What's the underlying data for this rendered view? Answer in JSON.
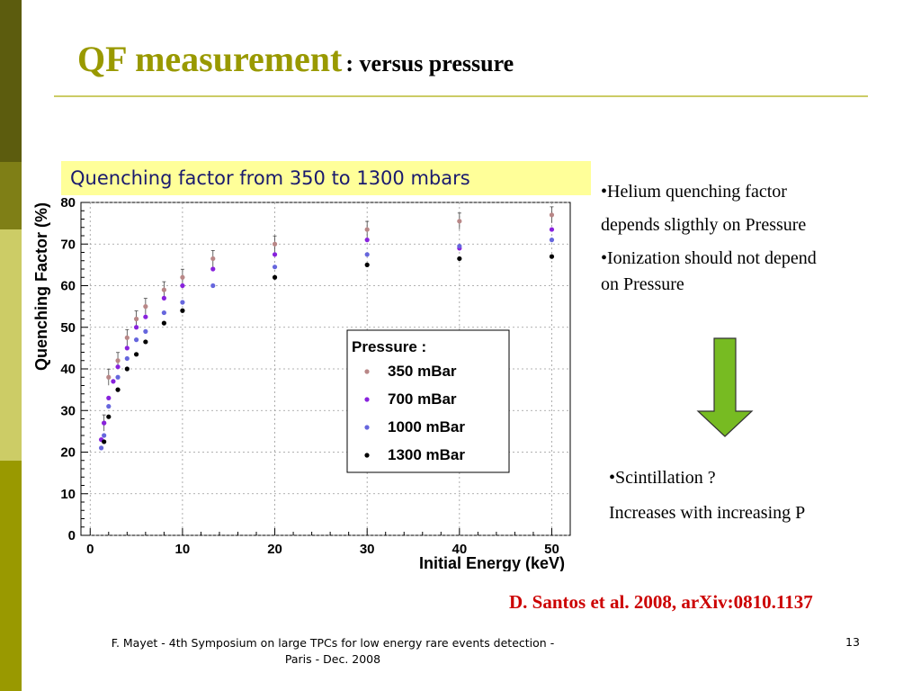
{
  "slide": {
    "title_main": "QF measurement",
    "title_sub": ": versus pressure",
    "banner": "Quenching factor from 350 to 1300 mbars",
    "bullets_top": [
      "•Helium quenching factor",
      "depends sligthly on Pressure",
      "•Ionization should not depend",
      "on Pressure"
    ],
    "bullets_bottom": [
      "•Scintillation ?",
      "Increases with increasing P"
    ],
    "reference": "D. Santos et al. 2008, arXiv:0810.1137",
    "footer_line1": "F. Mayet  - 4th Symposium on large TPCs  for low energy rare events detection -",
    "footer_line2": "Paris - Dec. 2008",
    "page_number": "13",
    "colors": {
      "title": "#999900",
      "banner_bg": "#ffff99",
      "arrow": "#77bb22",
      "reference": "#cc0000"
    }
  },
  "chart_data": {
    "type": "scatter",
    "xlabel": "Initial Energy (keV)",
    "ylabel": "Quenching Factor (%)",
    "xlim": [
      -1,
      52
    ],
    "ylim": [
      0,
      80
    ],
    "xticks": [
      0,
      10,
      20,
      30,
      40,
      50
    ],
    "yticks": [
      0,
      10,
      20,
      30,
      40,
      50,
      60,
      70,
      80
    ],
    "grid": true,
    "legend_title": "Pressure :",
    "legend_position": "center-right",
    "series": [
      {
        "name": "350 mBar",
        "color": "#b98787",
        "x": [
          1.5,
          2,
          3,
          4,
          5,
          6,
          8,
          10,
          13.3,
          20,
          30,
          40,
          50
        ],
        "y": [
          27,
          38,
          42,
          47.5,
          52,
          55,
          59,
          62,
          66.5,
          70,
          73.5,
          75.5,
          77
        ]
      },
      {
        "name": "700 mBar",
        "color": "#8822dd",
        "x": [
          1.2,
          1.5,
          2,
          2.5,
          3,
          4,
          5,
          6,
          8,
          10,
          13.3,
          20,
          30,
          40,
          50
        ],
        "y": [
          23,
          27,
          33,
          37,
          40.5,
          45,
          50,
          52.5,
          57,
          60,
          64,
          67.5,
          71,
          69,
          73.5
        ]
      },
      {
        "name": "1000 mBar",
        "color": "#6666dd",
        "x": [
          1.2,
          1.5,
          2,
          3,
          4,
          5,
          6,
          8,
          10,
          13.3,
          20,
          30,
          40,
          50
        ],
        "y": [
          21,
          24,
          31,
          38,
          42.5,
          47,
          49,
          53.5,
          56,
          60,
          64.5,
          67.5,
          69.5,
          71
        ]
      },
      {
        "name": "1300 mBar",
        "color": "#000000",
        "x": [
          1.5,
          2,
          3,
          4,
          5,
          6,
          8,
          10,
          20,
          30,
          40,
          50
        ],
        "y": [
          22.5,
          28.5,
          35,
          40,
          43.5,
          46.5,
          51,
          54,
          62,
          65,
          66.5,
          67
        ]
      }
    ]
  }
}
